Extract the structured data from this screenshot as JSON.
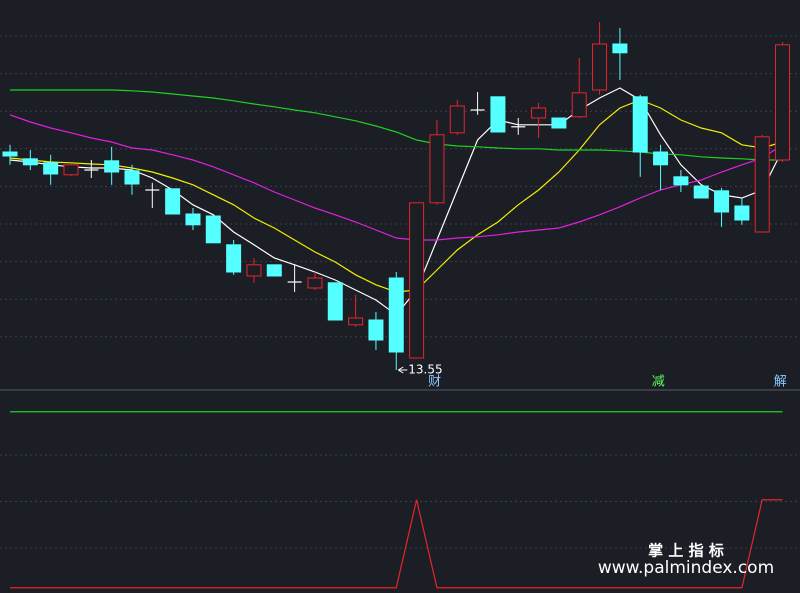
{
  "chart_data": [
    {
      "type": "candlestick",
      "open": [
        19.0,
        18.83,
        18.73,
        18.43,
        18.55,
        18.78,
        18.53,
        18.05,
        18.08,
        17.45,
        17.4,
        16.68,
        15.9,
        16.18,
        15.75,
        15.6,
        15.73,
        14.68,
        14.8,
        15.85,
        13.85,
        17.73,
        19.48,
        20.05,
        20.38,
        19.63,
        19.85,
        19.85,
        19.88,
        20.55,
        21.7,
        20.38,
        19.0,
        18.38,
        18.15,
        18.03,
        17.65,
        17.0,
        18.8
      ],
      "high": [
        19.18,
        19.05,
        18.93,
        18.7,
        18.8,
        19.13,
        18.68,
        18.23,
        18.08,
        17.6,
        17.4,
        16.8,
        16.35,
        16.18,
        16.18,
        16.0,
        15.73,
        15.43,
        15.0,
        16.0,
        17.73,
        19.8,
        20.3,
        20.5,
        20.38,
        19.85,
        20.23,
        19.85,
        21.35,
        22.25,
        22.1,
        20.43,
        19.18,
        18.55,
        18.15,
        18.1,
        17.85,
        19.43,
        21.75
      ],
      "low": [
        18.68,
        18.55,
        18.18,
        18.4,
        18.35,
        18.18,
        17.93,
        17.6,
        17.45,
        17.05,
        16.73,
        15.93,
        15.73,
        15.9,
        15.5,
        15.55,
        14.8,
        14.63,
        14.05,
        13.55,
        13.85,
        17.68,
        19.43,
        19.93,
        19.5,
        19.43,
        19.35,
        19.6,
        19.85,
        20.43,
        20.8,
        18.38,
        18.05,
        18.0,
        17.85,
        17.13,
        17.18,
        17.0,
        18.75
      ],
      "close": [
        18.9,
        18.68,
        18.45,
        18.68,
        18.55,
        18.5,
        18.2,
        18.05,
        17.45,
        17.18,
        16.73,
        16.0,
        16.18,
        15.9,
        15.75,
        15.85,
        14.8,
        14.85,
        14.3,
        14.0,
        17.73,
        19.43,
        20.15,
        20.05,
        19.5,
        19.63,
        20.1,
        19.6,
        20.48,
        21.7,
        21.48,
        19.0,
        18.68,
        18.18,
        17.85,
        17.5,
        17.3,
        19.38,
        21.68
      ],
      "up_color": "#e8242c",
      "down_color": "#54ffff",
      "series": [
        {
          "color": "#ffffff",
          "values": [
            18.8,
            18.75,
            18.68,
            18.63,
            18.6,
            18.6,
            18.55,
            18.35,
            18.05,
            17.68,
            17.43,
            17.0,
            16.68,
            16.35,
            16.18,
            16.0,
            15.8,
            15.55,
            15.3,
            14.93,
            15.55,
            16.8,
            18.05,
            19.3,
            19.8,
            19.68,
            19.68,
            19.68,
            20.05,
            20.35,
            20.6,
            20.3,
            19.43,
            18.68,
            18.18,
            17.93,
            17.85,
            18.05,
            19.05
          ]
        },
        {
          "color": "#f0f000",
          "values": [
            18.85,
            18.8,
            18.75,
            18.73,
            18.7,
            18.68,
            18.6,
            18.5,
            18.35,
            18.18,
            17.93,
            17.68,
            17.35,
            17.1,
            16.8,
            16.5,
            16.25,
            15.93,
            15.68,
            15.5,
            15.55,
            16.05,
            16.55,
            16.93,
            17.25,
            17.68,
            18.05,
            18.5,
            19.05,
            19.68,
            20.1,
            20.3,
            20.1,
            19.8,
            19.6,
            19.48,
            19.18,
            19.1,
            19.25
          ]
        },
        {
          "color": "#e020e0",
          "values": [
            19.93,
            19.75,
            19.6,
            19.48,
            19.35,
            19.25,
            19.1,
            19.05,
            18.93,
            18.8,
            18.63,
            18.43,
            18.23,
            18.0,
            17.8,
            17.6,
            17.43,
            17.25,
            17.05,
            16.85,
            16.8,
            16.8,
            16.85,
            16.88,
            16.93,
            17.0,
            17.05,
            17.1,
            17.25,
            17.43,
            17.63,
            17.85,
            18.05,
            18.18,
            18.3,
            18.5,
            18.68,
            18.85,
            19.18
          ]
        },
        {
          "color": "#20d020",
          "values": [
            20.55,
            20.55,
            20.55,
            20.55,
            20.55,
            20.55,
            20.53,
            20.5,
            20.45,
            20.4,
            20.35,
            20.28,
            20.2,
            20.13,
            20.05,
            19.98,
            19.88,
            19.78,
            19.65,
            19.5,
            19.3,
            19.2,
            19.15,
            19.13,
            19.1,
            19.08,
            19.08,
            19.05,
            19.05,
            19.05,
            19.03,
            19.0,
            18.95,
            18.93,
            18.88,
            18.85,
            18.83,
            18.8,
            18.8
          ]
        }
      ],
      "ylim": [
        13.05,
        22.8
      ],
      "grid": true,
      "annotations": [
        {
          "text": "13.55",
          "index": 19,
          "color": "#ffffff"
        },
        {
          "text": "财",
          "index": 20,
          "color": "#8cc8ff"
        },
        {
          "text": "减",
          "index": 31,
          "color": "#60ff60"
        },
        {
          "text": "解",
          "index": 37,
          "color": "#8cc8ff"
        }
      ]
    },
    {
      "type": "line",
      "series": [
        {
          "color": "#20d020",
          "values": [
            2,
            2,
            2,
            2,
            2,
            2,
            2,
            2,
            2,
            2,
            2,
            2,
            2,
            2,
            2,
            2,
            2,
            2,
            2,
            2,
            2,
            2,
            2,
            2,
            2,
            2,
            2,
            2,
            2,
            2,
            2,
            2,
            2,
            2,
            2,
            2,
            2,
            2,
            2
          ]
        },
        {
          "color": "#e8242c",
          "values": [
            0,
            0,
            0,
            0,
            0,
            0,
            0,
            0,
            0,
            0,
            0,
            0,
            0,
            0,
            0,
            0,
            0,
            0,
            0,
            0,
            1,
            0,
            0,
            0,
            0,
            0,
            0,
            0,
            0,
            0,
            0,
            0,
            0,
            0,
            0,
            0,
            0,
            1,
            1
          ]
        }
      ],
      "ylim": [
        -0.06,
        2.19
      ],
      "grid": true
    }
  ],
  "watermark": {
    "title": "掌 上 指 标",
    "url": "www.palmindex.com"
  }
}
